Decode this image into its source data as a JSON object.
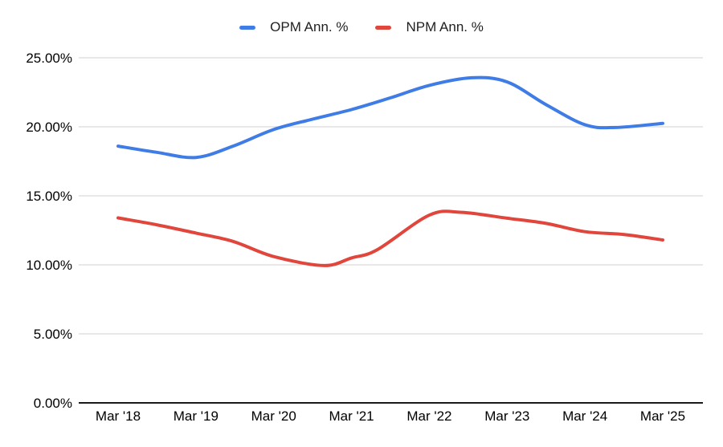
{
  "legend": {
    "position": "top",
    "items": [
      {
        "label": "OPM Ann. %",
        "color": "#3f7ce6"
      },
      {
        "label": "NPM Ann. %",
        "color": "#e0463c"
      }
    ]
  },
  "chart_data": {
    "type": "line",
    "title": "",
    "xlabel": "",
    "ylabel": "",
    "categories": [
      "Mar '18",
      "Mar '19",
      "Mar '20",
      "Mar '21",
      "Mar '22",
      "Mar '23",
      "Mar '24",
      "Mar '25"
    ],
    "series": [
      {
        "name": "OPM Ann. %",
        "color": "#3f7ce6",
        "values": [
          18.6,
          17.8,
          19.8,
          21.2,
          23.0,
          23.2,
          20.1,
          20.2
        ],
        "curve": [
          [
            0.0,
            18.6
          ],
          [
            0.071,
            18.15
          ],
          [
            0.1429,
            17.78
          ],
          [
            0.211,
            18.6
          ],
          [
            0.2857,
            19.8
          ],
          [
            0.357,
            20.55
          ],
          [
            0.4286,
            21.25
          ],
          [
            0.5,
            22.1
          ],
          [
            0.5714,
            23.0
          ],
          [
            0.649,
            23.55
          ],
          [
            0.7143,
            23.25
          ],
          [
            0.786,
            21.6
          ],
          [
            0.8571,
            20.15
          ],
          [
            0.912,
            19.95
          ],
          [
            1.0,
            20.25
          ]
        ]
      },
      {
        "name": "NPM Ann. %",
        "color": "#e0463c",
        "values": [
          13.4,
          12.3,
          10.6,
          10.5,
          13.6,
          13.4,
          12.4,
          11.8
        ],
        "curve": [
          [
            0.0,
            13.4
          ],
          [
            0.071,
            12.9
          ],
          [
            0.1429,
            12.3
          ],
          [
            0.211,
            11.7
          ],
          [
            0.2857,
            10.6
          ],
          [
            0.378,
            9.95
          ],
          [
            0.4286,
            10.5
          ],
          [
            0.476,
            11.1
          ],
          [
            0.5714,
            13.6
          ],
          [
            0.631,
            13.8
          ],
          [
            0.7143,
            13.38
          ],
          [
            0.786,
            13.0
          ],
          [
            0.8571,
            12.4
          ],
          [
            0.929,
            12.2
          ],
          [
            1.0,
            11.8
          ]
        ]
      }
    ],
    "y_axis": {
      "min": 0,
      "max": 25,
      "tick_step": 5,
      "tick_labels": [
        "0.00%",
        "5.00%",
        "10.00%",
        "15.00%",
        "20.00%",
        "25.00%"
      ]
    },
    "grid": true,
    "legend_position": "top"
  },
  "colors": {
    "background": "#ffffff",
    "gridline": "#d9d9d9",
    "axis_line": "#1a1a1a",
    "tick_text": "#000000"
  }
}
